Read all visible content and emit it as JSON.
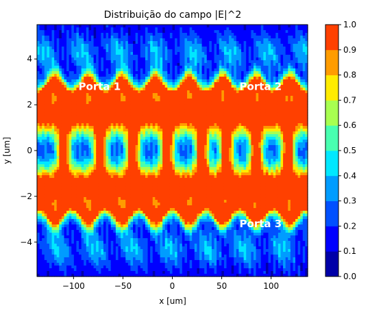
{
  "chart_data": {
    "type": "heatmap",
    "title": "Distribuição do campo |E|^2",
    "xlabel": "x [um]",
    "ylabel": "y [um]",
    "xlim": [
      -137,
      137
    ],
    "ylim": [
      -5.5,
      5.5
    ],
    "x_ticks": [
      -100,
      -50,
      0,
      50,
      100
    ],
    "x_tick_labels": [
      "−100",
      "−50",
      "0",
      "50",
      "100"
    ],
    "y_ticks": [
      -4,
      -2,
      0,
      2,
      4
    ],
    "y_tick_labels": [
      "−4",
      "−2",
      "0",
      "2",
      "4"
    ],
    "colorbar": {
      "colormap": "jet",
      "levels": [
        0.0,
        0.1,
        0.2,
        0.3,
        0.4,
        0.5,
        0.6,
        0.7,
        0.8,
        0.9,
        1.0
      ],
      "tick_labels": [
        "0.0",
        "0.1",
        "0.2",
        "0.3",
        "0.4",
        "0.5",
        "0.6",
        "0.7",
        "0.8",
        "0.9",
        "1.0"
      ],
      "colors": [
        "#0000a8",
        "#0000ff",
        "#0050ff",
        "#009cff",
        "#00e8ff",
        "#48ffb0",
        "#a8ff50",
        "#ffec00",
        "#ff9c00",
        "#ff4000",
        "#b40000"
      ]
    },
    "annotations": [
      {
        "text": "Porta 1",
        "x": -95,
        "y": 2.65
      },
      {
        "text": "Porta 2",
        "x": 68,
        "y": 2.65
      },
      {
        "text": "Porta 3",
        "x": 68,
        "y": -3.35
      }
    ],
    "field_model": {
      "guide_centers_y": [
        -1.6,
        1.6
      ],
      "guide_width_y": 1.0,
      "center_x": [
        -110,
        -73,
        -40,
        -5,
        30,
        55,
        85,
        117
      ]
    }
  }
}
